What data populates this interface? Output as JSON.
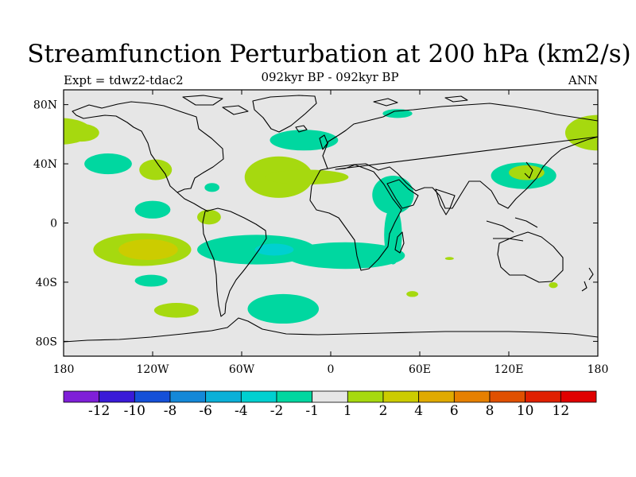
{
  "chart_data": {
    "type": "heatmap",
    "title": "Streamfunction Perturbation at 200 hPa (km2/s)",
    "left_string": "Expt = tdwz2-tdac2",
    "center_string": "092kyr BP - 092kyr BP",
    "right_string": "ANN",
    "x_axis": {
      "range": [
        -180,
        180
      ],
      "ticks": [
        -180,
        -120,
        -60,
        0,
        60,
        120,
        180
      ],
      "tick_labels": [
        "180",
        "120W",
        "60W",
        "0",
        "60E",
        "120E",
        "180"
      ]
    },
    "y_axis": {
      "range": [
        -90,
        90
      ],
      "ticks": [
        80,
        40,
        0,
        -40,
        -80
      ],
      "tick_labels": [
        "80N",
        "40N",
        "0",
        "40S",
        "80S"
      ]
    },
    "colorbar": {
      "labels": [
        "-12",
        "-10",
        "-8",
        "-6",
        "-4",
        "-2",
        "-1",
        "1",
        "2",
        "4",
        "6",
        "8",
        "10",
        "12"
      ],
      "colors": [
        "#7f1fd8",
        "#3a1ad8",
        "#1550d8",
        "#1488d8",
        "#0bb0d8",
        "#00d0d0",
        "#00d7a0",
        "#e6e6e6",
        "#a6d90f",
        "#cccc00",
        "#e0aa00",
        "#e68000",
        "#e05000",
        "#e02000",
        "#e00000"
      ]
    },
    "anomalies": [
      {
        "lon": -183,
        "lat": 62,
        "rx": 22,
        "ry": 9,
        "level": 1
      },
      {
        "lon": -168,
        "lat": 61,
        "rx": 12,
        "ry": 6,
        "level": 1
      },
      {
        "lon": -150,
        "lat": 40,
        "rx": 16,
        "ry": 7,
        "level": -1
      },
      {
        "lon": -118,
        "lat": 36,
        "rx": 11,
        "ry": 7,
        "level": 1
      },
      {
        "lon": -80,
        "lat": 24,
        "rx": 5,
        "ry": 3,
        "level": -1
      },
      {
        "lon": -120,
        "lat": 9,
        "rx": 12,
        "ry": 6,
        "level": -1
      },
      {
        "lon": -82,
        "lat": 4,
        "rx": 8,
        "ry": 5,
        "level": 1
      },
      {
        "lon": -127,
        "lat": -18,
        "rx": 33,
        "ry": 11,
        "level": 1
      },
      {
        "lon": -123,
        "lat": -18,
        "rx": 20,
        "ry": 7,
        "level": 2
      },
      {
        "lon": -121,
        "lat": -39,
        "rx": 11,
        "ry": 4,
        "level": -1
      },
      {
        "lon": -104,
        "lat": -59,
        "rx": 15,
        "ry": 5,
        "level": 1
      },
      {
        "lon": -50,
        "lat": -18,
        "rx": 40,
        "ry": 10,
        "level": -1
      },
      {
        "lon": 10,
        "lat": -22,
        "rx": 40,
        "ry": 9,
        "level": -1
      },
      {
        "lon": -38,
        "lat": -18,
        "rx": 13,
        "ry": 4,
        "level": -2
      },
      {
        "lon": -32,
        "lat": -58,
        "rx": 24,
        "ry": 10,
        "level": -1
      },
      {
        "lon": -35,
        "lat": 31,
        "rx": 23,
        "ry": 14,
        "level": 1
      },
      {
        "lon": -16,
        "lat": 31,
        "rx": 28,
        "ry": 5,
        "level": 1
      },
      {
        "lon": -18,
        "lat": 56,
        "rx": 23,
        "ry": 7,
        "level": -1
      },
      {
        "lon": 45,
        "lat": 74,
        "rx": 10,
        "ry": 3,
        "level": -1
      },
      {
        "lon": 42,
        "lat": 19,
        "rx": 14,
        "ry": 13,
        "level": -1
      },
      {
        "lon": 42,
        "lat": -8,
        "rx": 6,
        "ry": 20,
        "level": -1
      },
      {
        "lon": 180,
        "lat": 61,
        "rx": 22,
        "ry": 12,
        "level": 1
      },
      {
        "lon": 130,
        "lat": 32,
        "rx": 22,
        "ry": 9,
        "level": -1
      },
      {
        "lon": 132,
        "lat": 34,
        "rx": 12,
        "ry": 5,
        "level": 1
      },
      {
        "lon": 55,
        "lat": -48,
        "rx": 4,
        "ry": 2,
        "level": 1
      },
      {
        "lon": 150,
        "lat": -42,
        "rx": 3,
        "ry": 2,
        "level": 1
      },
      {
        "lon": 80,
        "lat": -24,
        "rx": 3,
        "ry": 1,
        "level": 1
      }
    ]
  }
}
